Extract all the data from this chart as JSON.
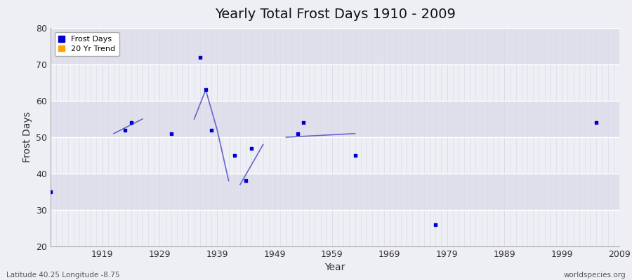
{
  "title": "Yearly Total Frost Days 1910 - 2009",
  "xlabel": "Year",
  "ylabel": "Frost Days",
  "subtitle_left": "Latitude 40.25 Longitude -8.75",
  "subtitle_right": "worldspecies.org",
  "xlim": [
    1910,
    2009
  ],
  "ylim": [
    20,
    80
  ],
  "yticks": [
    20,
    30,
    40,
    50,
    60,
    70,
    80
  ],
  "xticks": [
    1919,
    1929,
    1939,
    1949,
    1959,
    1969,
    1979,
    1989,
    1999,
    2009
  ],
  "frost_days": {
    "years": [
      1910,
      1923,
      1924,
      1931,
      1936,
      1937,
      1938,
      1942,
      1944,
      1945,
      1953,
      1954,
      1963,
      1977,
      2005
    ],
    "values": [
      35,
      52,
      54,
      51,
      72,
      63,
      52,
      45,
      38,
      47,
      51,
      54,
      45,
      26,
      54
    ]
  },
  "trend_segments": [
    [
      [
        1921,
        51
      ],
      [
        1926,
        55
      ]
    ],
    [
      [
        1935,
        55
      ],
      [
        1937,
        63
      ],
      [
        1939,
        52
      ],
      [
        1941,
        38
      ]
    ],
    [
      [
        1943,
        37
      ],
      [
        1947,
        48
      ]
    ],
    [
      [
        1951,
        50
      ],
      [
        1963,
        51
      ]
    ]
  ],
  "point_color": "#0000CC",
  "trend_color": "#6666CC",
  "bg_light": "#EEEEF5",
  "bg_dark": "#E0E0EC",
  "grid_major_color": "#FFFFFF",
  "grid_minor_color": "#D8D8E8",
  "marker": "s",
  "marker_size": 3,
  "legend_blue": "#0000CC",
  "legend_orange": "#FFA500"
}
